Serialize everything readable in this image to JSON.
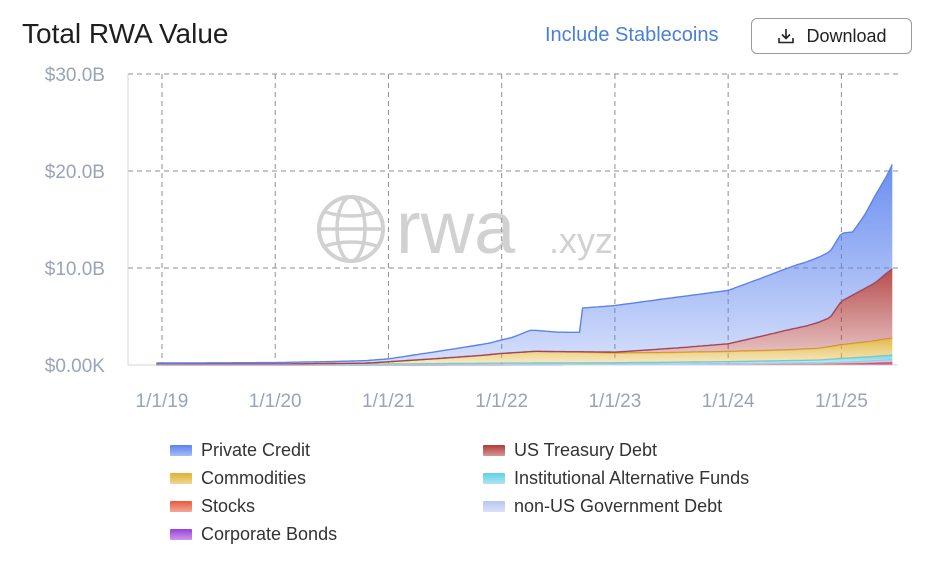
{
  "header": {
    "title": "Total RWA Value",
    "toggle_label": "Include Stablecoins",
    "download_label": "Download"
  },
  "watermark": {
    "text_main": "rwa",
    "text_suffix": ".xyz"
  },
  "legend": [
    {
      "label": "Private Credit",
      "color": "#5b82ee"
    },
    {
      "label": "US Treasury Debt",
      "color": "#b03a3a"
    },
    {
      "label": "Commodities",
      "color": "#e0b233"
    },
    {
      "label": "Institutional Alternative Funds",
      "color": "#62cfe6"
    },
    {
      "label": "Stocks",
      "color": "#ea5a3c"
    },
    {
      "label": "non-US Government Debt",
      "color": "#b9c6ef"
    },
    {
      "label": "Corporate Bonds",
      "color": "#9c3fd8"
    }
  ],
  "chart_data": {
    "type": "area",
    "stacked": true,
    "y_tick_labels": [
      "$0.00K",
      "$10.0B",
      "$20.0B",
      "$30.0B"
    ],
    "y_ticks": [
      0,
      10,
      20,
      30
    ],
    "ylim": [
      0,
      30
    ],
    "y_unit": "billion USD",
    "x_tick_labels": [
      "1/1/19",
      "1/1/20",
      "1/1/21",
      "1/1/22",
      "1/1/23",
      "1/1/24",
      "1/1/25"
    ],
    "x_ticks": [
      2019.0,
      2020.0,
      2021.0,
      2022.0,
      2023.0,
      2024.0,
      2025.0
    ],
    "xlim": [
      2018.7,
      2025.5
    ],
    "grid": true,
    "legend_position": "bottom",
    "series": [
      {
        "name": "Corporate Bonds",
        "color": "#9c3fd8",
        "x": [
          2018.95,
          2021.0,
          2023.0,
          2024.0,
          2024.8,
          2025.0,
          2025.25,
          2025.5
        ],
        "values": [
          0,
          0,
          0.02,
          0.04,
          0.06,
          0.08,
          0.1,
          0.12
        ]
      },
      {
        "name": "Stocks",
        "color": "#ea5a3c",
        "x": [
          2018.95,
          2021.0,
          2023.0,
          2024.0,
          2024.8,
          2025.0,
          2025.25,
          2025.5
        ],
        "values": [
          0,
          0,
          0.01,
          0.02,
          0.03,
          0.05,
          0.1,
          0.2
        ]
      },
      {
        "name": "non-US Government Debt",
        "color": "#b9c6ef",
        "x": [
          2018.95,
          2021.0,
          2023.0,
          2024.0,
          2024.8,
          2025.0,
          2025.25,
          2025.5
        ],
        "values": [
          0,
          0,
          0.05,
          0.08,
          0.12,
          0.15,
          0.2,
          0.25
        ]
      },
      {
        "name": "Institutional Alternative Funds",
        "color": "#62cfe6",
        "x": [
          2018.95,
          2020.0,
          2021.0,
          2022.0,
          2023.0,
          2024.0,
          2024.8,
          2025.0,
          2025.25,
          2025.5
        ],
        "values": [
          0.05,
          0.05,
          0.1,
          0.15,
          0.15,
          0.2,
          0.3,
          0.4,
          0.45,
          0.5
        ]
      },
      {
        "name": "Commodities",
        "color": "#e0b233",
        "x": [
          2018.95,
          2020.0,
          2020.8,
          2021.1,
          2021.4,
          2021.8,
          2022.0,
          2022.3,
          2022.7,
          2023.0,
          2023.5,
          2024.0,
          2024.5,
          2024.8,
          2025.0,
          2025.3,
          2025.5
        ],
        "values": [
          0.05,
          0.05,
          0.1,
          0.3,
          0.5,
          0.8,
          1.0,
          1.2,
          1.1,
          1.0,
          1.0,
          1.05,
          1.1,
          1.2,
          1.4,
          1.6,
          1.8
        ]
      },
      {
        "name": "US Treasury Debt",
        "color": "#b03a3a",
        "x": [
          2018.95,
          2022.0,
          2022.5,
          2023.0,
          2023.3,
          2023.6,
          2024.0,
          2024.3,
          2024.5,
          2024.7,
          2024.9,
          2025.0,
          2025.1,
          2025.2,
          2025.3,
          2025.4,
          2025.5
        ],
        "values": [
          0,
          0,
          0.02,
          0.1,
          0.3,
          0.5,
          0.8,
          1.5,
          2.0,
          2.4,
          3.0,
          4.5,
          5.0,
          5.5,
          6.0,
          6.8,
          7.5
        ]
      },
      {
        "name": "Private Credit",
        "color": "#5b82ee",
        "x": [
          2018.95,
          2020.0,
          2020.5,
          2021.0,
          2021.3,
          2021.6,
          2021.9,
          2022.1,
          2022.25,
          2022.5,
          2022.7,
          2022.71,
          2023.0,
          2023.5,
          2024.0,
          2024.3,
          2024.6,
          2024.9,
          2025.0,
          2025.1,
          2025.2,
          2025.3,
          2025.4,
          2025.5
        ],
        "values": [
          0.1,
          0.15,
          0.2,
          0.3,
          0.6,
          0.9,
          1.2,
          1.6,
          2.2,
          2.0,
          2.0,
          4.5,
          4.8,
          5.2,
          5.5,
          6.0,
          6.5,
          6.8,
          7.0,
          6.5,
          7.5,
          9.0,
          10.0,
          11.5
        ]
      }
    ]
  }
}
